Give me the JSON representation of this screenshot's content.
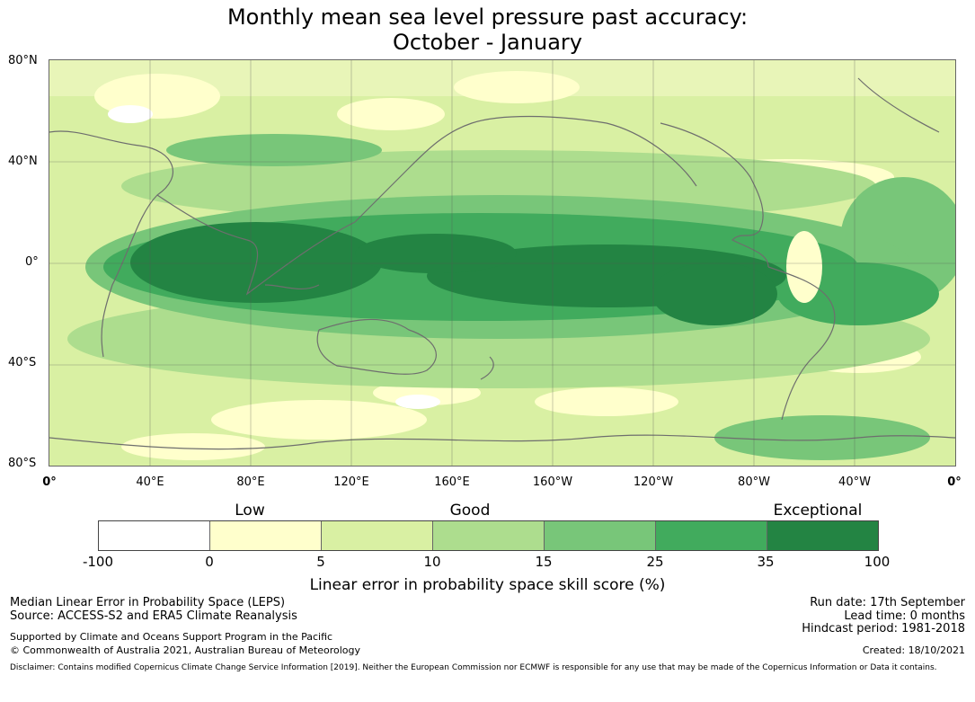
{
  "title": {
    "line1": "Monthly mean sea level pressure past accuracy:",
    "line2": "October - January"
  },
  "map": {
    "lat_labels": [
      "80°N",
      "40°N",
      "0°",
      "40°S",
      "80°S"
    ],
    "lon_labels": [
      "0°",
      "40°E",
      "80°E",
      "120°E",
      "160°E",
      "160°W",
      "120°W",
      "80°W",
      "40°W",
      "0°"
    ]
  },
  "legend": {
    "categories": [
      "Low",
      "Good",
      "Exceptional"
    ],
    "ticks": [
      "-100",
      "0",
      "5",
      "10",
      "15",
      "25",
      "35",
      "100"
    ],
    "colors": [
      "#ffffff",
      "#ffffcc",
      "#d9f0a3",
      "#addd8e",
      "#78c679",
      "#41ab5d",
      "#238443"
    ],
    "caption": "Linear error in probability space skill score (%)"
  },
  "footer": {
    "left1": "Median Linear Error in Probability Space (LEPS)",
    "left2": "Source: ACCESS-S2 and ERA5 Climate Reanalysis",
    "left3": "Supported by Climate and Oceans Support Program in the Pacific",
    "left4": "© Commonwealth of Australia 2021, Australian Bureau of Meteorology",
    "run_date": "Run date: 17th September",
    "lead_time": "Lead time: 0 months",
    "hindcast": "Hindcast period: 1981-2018",
    "created": "Created: 18/10/2021",
    "disclaimer": "Disclaimer: Contains modified Copernicus Climate Change Service Information [2019]. Neither the European Commission nor ECMWF is responsible for any use that may be made of the Copernicus Information or Data it contains."
  }
}
